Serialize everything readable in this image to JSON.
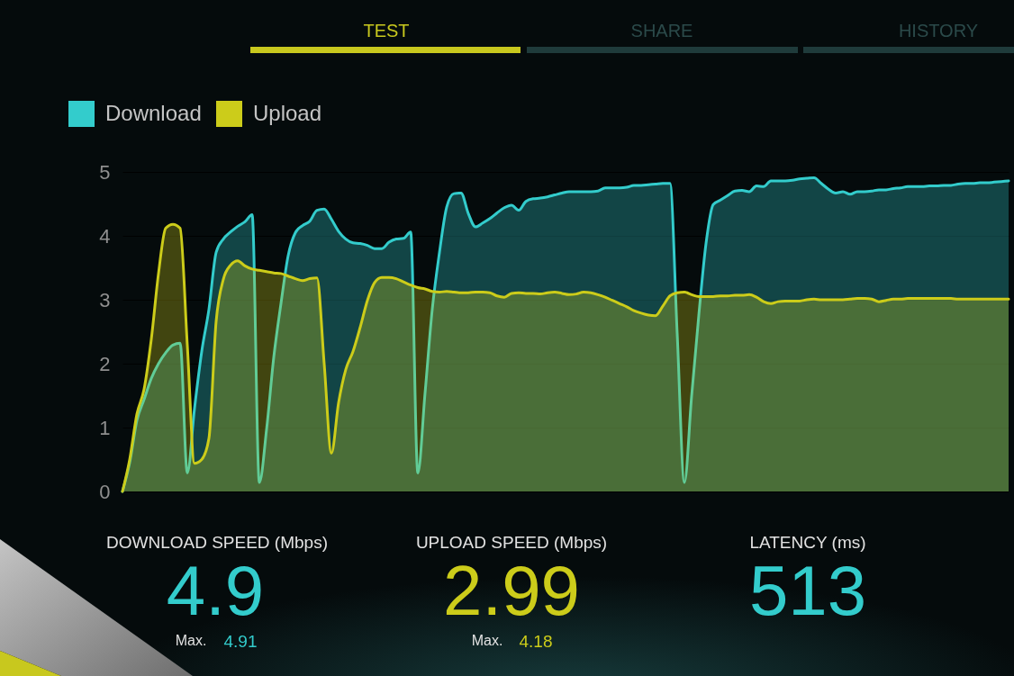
{
  "chart_data": {
    "type": "area",
    "categories": [
      null,
      null,
      null,
      null,
      null,
      null,
      null,
      null,
      null,
      null,
      null,
      null,
      null,
      null,
      null,
      null,
      null,
      null,
      null,
      null,
      null,
      null,
      null,
      null,
      null,
      null,
      null,
      null,
      null,
      null,
      null,
      null,
      null,
      null,
      null,
      null,
      null,
      null,
      null,
      null,
      null,
      null,
      null,
      null,
      null,
      null,
      null,
      null,
      null,
      null,
      null,
      null,
      null,
      null,
      null,
      null,
      null,
      null,
      null,
      null,
      null,
      null,
      null,
      null,
      null,
      null,
      null,
      null,
      null,
      null,
      null,
      null,
      null,
      null,
      null,
      null,
      null,
      null,
      null,
      null,
      null,
      null,
      null,
      null,
      null,
      null,
      null,
      null,
      null,
      null,
      null,
      null,
      null,
      null,
      null,
      null,
      null,
      null,
      null,
      null,
      null,
      null,
      null,
      null,
      null,
      null,
      null,
      null,
      null,
      null,
      null,
      null,
      null,
      null,
      null,
      null,
      null,
      null,
      null,
      null,
      null,
      null,
      null,
      null
    ],
    "series": [
      {
        "name": "Download",
        "color": "#33cccc",
        "values": [
          0,
          0.45,
          1.11,
          1.44,
          1.77,
          2.0,
          2.17,
          2.29,
          2.32,
          0.29,
          1.3,
          2.19,
          2.85,
          3.74,
          3.95,
          4.06,
          4.15,
          4.22,
          4.33,
          0.14,
          0.97,
          2.1,
          2.94,
          3.69,
          4.05,
          4.16,
          4.23,
          4.4,
          4.42,
          4.26,
          4.07,
          3.95,
          3.89,
          3.88,
          3.85,
          3.8,
          3.8,
          3.9,
          3.95,
          3.96,
          4.06,
          0.29,
          1.54,
          2.85,
          3.74,
          4.45,
          4.66,
          4.67,
          4.35,
          4.14,
          4.2,
          4.27,
          4.36,
          4.44,
          4.48,
          4.4,
          4.54,
          4.58,
          4.59,
          4.61,
          4.64,
          4.67,
          4.69,
          4.69,
          4.69,
          4.69,
          4.7,
          4.75,
          4.75,
          4.75,
          4.76,
          4.79,
          4.79,
          4.8,
          4.81,
          4.82,
          4.82,
          2.47,
          0.14,
          1.49,
          2.76,
          3.88,
          4.49,
          4.56,
          4.63,
          4.7,
          4.71,
          4.69,
          4.78,
          4.77,
          4.86,
          4.86,
          4.86,
          4.87,
          4.89,
          4.9,
          4.91,
          4.82,
          4.73,
          4.67,
          4.69,
          4.65,
          4.69,
          4.69,
          4.7,
          4.72,
          4.72,
          4.74,
          4.75,
          4.77,
          4.77,
          4.77,
          4.78,
          4.78,
          4.79,
          4.79,
          4.81,
          4.82,
          4.82,
          4.83,
          4.83,
          4.84,
          4.85,
          4.86
        ]
      },
      {
        "name": "Upload",
        "color": "#cccc1a",
        "values": [
          0,
          0.5,
          1.21,
          1.6,
          2.38,
          3.41,
          4.12,
          4.18,
          4.12,
          2.29,
          0.44,
          0.5,
          0.83,
          2.66,
          3.32,
          3.54,
          3.61,
          3.53,
          3.48,
          3.46,
          3.44,
          3.42,
          3.41,
          3.37,
          3.33,
          3.3,
          3.33,
          3.34,
          2.0,
          0.6,
          1.39,
          1.91,
          2.19,
          2.57,
          2.99,
          3.27,
          3.35,
          3.35,
          3.33,
          3.28,
          3.23,
          3.19,
          3.17,
          3.13,
          3.12,
          3.13,
          3.12,
          3.11,
          3.11,
          3.12,
          3.12,
          3.11,
          3.06,
          3.04,
          3.1,
          3.11,
          3.1,
          3.1,
          3.09,
          3.11,
          3.12,
          3.1,
          3.08,
          3.09,
          3.12,
          3.11,
          3.08,
          3.04,
          2.99,
          2.94,
          2.89,
          2.83,
          2.79,
          2.76,
          2.75,
          2.9,
          3.06,
          3.11,
          3.12,
          3.08,
          3.05,
          3.05,
          3.05,
          3.06,
          3.06,
          3.07,
          3.07,
          3.08,
          3.04,
          2.97,
          2.94,
          2.97,
          2.98,
          2.98,
          2.98,
          3.0,
          3.01,
          3.0,
          3.0,
          3.0,
          3.0,
          3.01,
          3.02,
          3.02,
          3.01,
          2.97,
          2.99,
          3.01,
          3.01,
          3.02,
          3.02,
          3.02,
          3.02,
          3.02,
          3.02,
          3.02,
          3.01,
          3.01,
          3.01,
          3.01,
          3.01,
          3.01,
          3.01,
          3.01
        ]
      }
    ],
    "ylim": [
      0,
      5
    ],
    "yticks": [
      0,
      1,
      2,
      3,
      4,
      5
    ],
    "grid": "y",
    "legend": "top left",
    "annotations": [
      "TEST",
      "SHARE",
      "HISTORY",
      "DOWNLOAD SPEED (Mbps)",
      "4.9",
      "Max.",
      "4.91",
      "UPLOAD SPEED (Mbps)",
      "2.99",
      "Max.",
      "4.18",
      "LATENCY (ms)",
      "513"
    ]
  }
}
